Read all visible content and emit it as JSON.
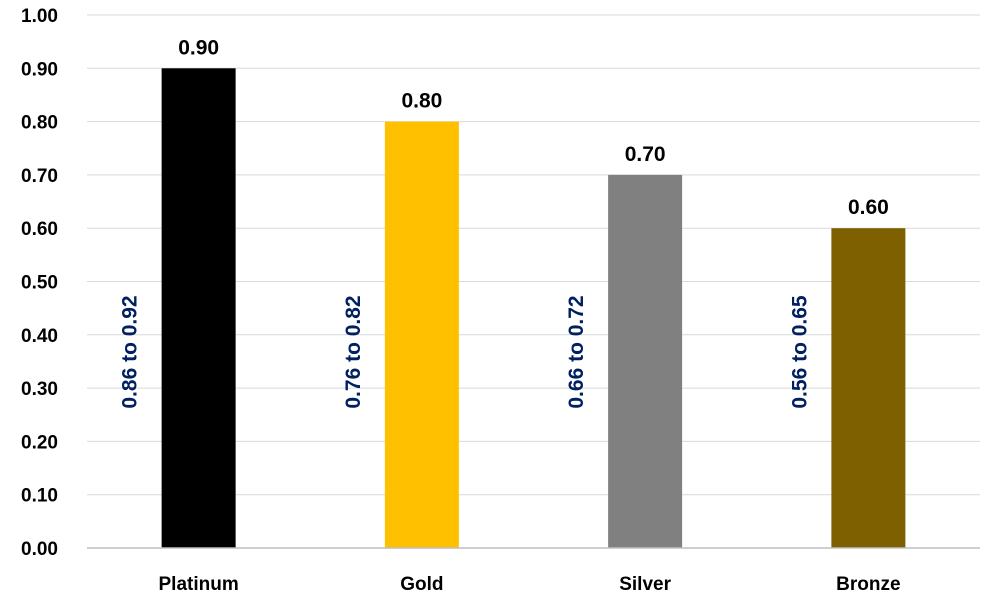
{
  "chart_data": {
    "type": "bar",
    "categories": [
      "Platinum",
      "Gold",
      "Silver",
      "Bronze"
    ],
    "values": [
      0.9,
      0.8,
      0.7,
      0.6
    ],
    "value_labels": [
      "0.90",
      "0.80",
      "0.70",
      "0.60"
    ],
    "range_labels": [
      "0.86 to 0.92",
      "0.76 to 0.82",
      "0.66 to 0.72",
      "0.56 to 0.65"
    ],
    "bar_colors": [
      "#000000",
      "#ffc000",
      "#808080",
      "#7f6000"
    ],
    "range_label_color": "#002060",
    "title": "",
    "xlabel": "",
    "ylabel": "",
    "ylim": [
      0,
      1.0
    ],
    "yticks": [
      "0.00",
      "0.10",
      "0.20",
      "0.30",
      "0.40",
      "0.50",
      "0.60",
      "0.70",
      "0.80",
      "0.90",
      "1.00"
    ],
    "grid": true,
    "legend": "none"
  }
}
